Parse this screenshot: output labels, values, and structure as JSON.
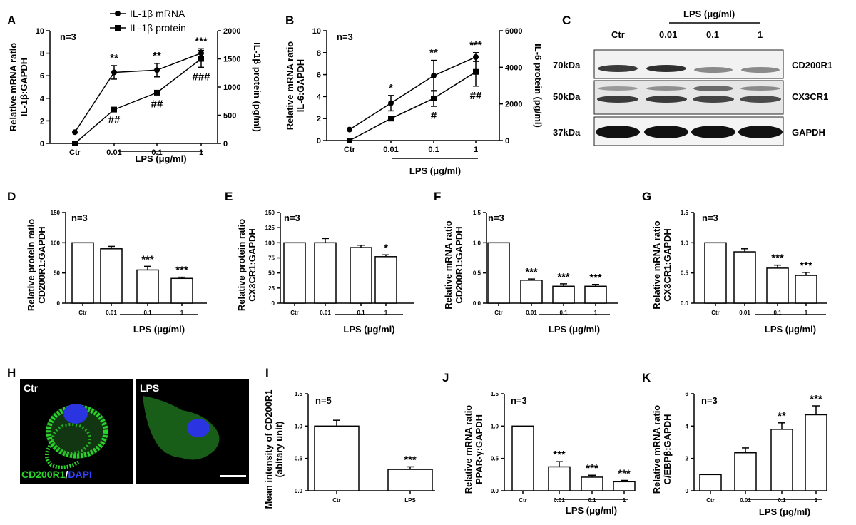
{
  "panel_labels": {
    "A": "A",
    "B": "B",
    "C": "C",
    "D": "D",
    "E": "E",
    "F": "F",
    "G": "G",
    "H": "H",
    "I": "I",
    "J": "J",
    "K": "K"
  },
  "group_label": "LPS (μg/ml)",
  "n3": "n=3",
  "n5": "n=5",
  "chart_data": [
    {
      "id": "A",
      "type": "line",
      "categories": [
        "Ctr",
        "0.01",
        "0.1",
        "1"
      ],
      "ylabel": "Relative mRNA ratio\nIL-1β:GAPDH",
      "ylabel2": "IL-1β protein (pg/ml)",
      "ylim": [
        0,
        10
      ],
      "yticks": [
        "0",
        "2",
        "4",
        "6",
        "8",
        "10"
      ],
      "ylim2": [
        0,
        2000
      ],
      "yticks2": [
        "0",
        "500",
        "1000",
        "1500",
        "2000"
      ],
      "series": [
        {
          "name": "IL-1β mRNA",
          "marker": "circle",
          "axis": "left",
          "values": [
            1.0,
            6.3,
            6.5,
            8.0
          ],
          "errors": [
            0,
            0.6,
            0.6,
            0.4
          ],
          "sig": [
            "",
            "**",
            "**",
            "***"
          ]
        },
        {
          "name": "IL-1β protein",
          "marker": "square",
          "axis": "right",
          "values": [
            0,
            600,
            900,
            1500
          ],
          "errors": [
            0,
            20,
            30,
            150
          ],
          "sig": [
            "",
            "##",
            "##",
            "###"
          ]
        }
      ],
      "n": "n=3",
      "xlabel": "LPS (μg/ml)"
    },
    {
      "id": "B",
      "type": "line",
      "categories": [
        "Ctr",
        "0.01",
        "0.1",
        "1"
      ],
      "ylabel": "Relative mRNA ratio\nIL-6:GAPDH",
      "ylabel2": "IL-6 protein (pg/ml)",
      "ylim": [
        0,
        10
      ],
      "yticks": [
        "0",
        "2",
        "4",
        "6",
        "8",
        "10"
      ],
      "ylim2": [
        0,
        6000
      ],
      "yticks2": [
        "0",
        "2000",
        "4000",
        "6000"
      ],
      "series": [
        {
          "name": "IL-6 mRNA",
          "marker": "circle",
          "axis": "left",
          "values": [
            1.0,
            3.4,
            5.9,
            7.6
          ],
          "errors": [
            0,
            0.7,
            1.4,
            0.4
          ],
          "sig": [
            "",
            "*",
            "**",
            "***"
          ]
        },
        {
          "name": "IL-6 protein",
          "marker": "square",
          "axis": "right",
          "values": [
            0,
            1200,
            2300,
            3750
          ],
          "errors": [
            0,
            60,
            430,
            780
          ],
          "sig": [
            "",
            "",
            "#",
            "##"
          ]
        }
      ],
      "n": "n=3",
      "xlabel": "LPS (μg/ml)"
    },
    {
      "id": "D",
      "type": "bar",
      "categories": [
        "Ctr",
        "0.01",
        "0.1",
        "1"
      ],
      "values": [
        100,
        90,
        55,
        41
      ],
      "errors": [
        0,
        4,
        6,
        2
      ],
      "sig": [
        "",
        "",
        "***",
        "***"
      ],
      "ylabel": "Relative protein ratio\nCD200R1:GAPDH",
      "ylim": [
        0,
        150
      ],
      "yticks": [
        "0",
        "50",
        "100",
        "150"
      ],
      "n": "n=3",
      "xlabel": "LPS (μg/ml)"
    },
    {
      "id": "E",
      "type": "bar",
      "categories": [
        "Ctr",
        "0.01",
        "0.1",
        "1"
      ],
      "values": [
        100,
        100,
        92,
        77
      ],
      "errors": [
        0,
        7,
        4,
        3
      ],
      "sig": [
        "",
        "",
        "",
        "*"
      ],
      "ylabel": "Relative protein ratio\nCX3CR1:GAPDH",
      "ylim": [
        0,
        150
      ],
      "yticks": [
        "0",
        "25",
        "50",
        "75",
        "100",
        "125",
        "150"
      ],
      "n": "n=3",
      "xlabel": "LPS (μg/ml)"
    },
    {
      "id": "F",
      "type": "bar",
      "categories": [
        "Ctr",
        "0.01",
        "0.1",
        "1"
      ],
      "values": [
        1.0,
        0.38,
        0.28,
        0.28
      ],
      "errors": [
        0,
        0.02,
        0.04,
        0.03
      ],
      "sig": [
        "",
        "***",
        "***",
        "***"
      ],
      "ylabel": "Relative mRNA ratio\nCD200R1:GAPDH",
      "ylim": [
        0,
        1.5
      ],
      "yticks": [
        "0.0",
        "0.5",
        "1.0",
        "1.5"
      ],
      "n": "n=3",
      "xlabel": "LPS (μg/ml)"
    },
    {
      "id": "G",
      "type": "bar",
      "categories": [
        "Ctr",
        "0.01",
        "0.1",
        "1"
      ],
      "values": [
        1.0,
        0.85,
        0.58,
        0.46
      ],
      "errors": [
        0,
        0.05,
        0.05,
        0.05
      ],
      "sig": [
        "",
        "",
        "***",
        "***"
      ],
      "ylabel": "Relative mRNA ratio\nCX3CR1:GAPDH",
      "ylim": [
        0,
        1.5
      ],
      "yticks": [
        "0.0",
        "0.5",
        "1.0",
        "1.5"
      ],
      "n": "n=3",
      "xlabel": "LPS (μg/ml)"
    },
    {
      "id": "I",
      "type": "bar",
      "categories": [
        "Ctr",
        "LPS"
      ],
      "values": [
        1.0,
        0.33
      ],
      "errors": [
        0.09,
        0.04
      ],
      "sig": [
        "",
        "***"
      ],
      "ylabel": "Mean intensity of CD200R1\n(abitary unit)",
      "ylim": [
        0,
        1.5
      ],
      "yticks": [
        "0.0",
        "0.5",
        "1.0",
        "1.5"
      ],
      "n": "n=5",
      "xlabel": ""
    },
    {
      "id": "J",
      "type": "bar",
      "categories": [
        "Ctr",
        "0.01",
        "0.1",
        "1"
      ],
      "values": [
        1.0,
        0.37,
        0.21,
        0.14
      ],
      "errors": [
        0,
        0.08,
        0.03,
        0.02
      ],
      "sig": [
        "",
        "***",
        "***",
        "***"
      ],
      "ylabel": "Relative mRNA ratio\nPPAR-γ:GAPDH",
      "ylim": [
        0,
        1.5
      ],
      "yticks": [
        "0.0",
        "0.5",
        "1.0",
        "1.5"
      ],
      "n": "n=3",
      "xlabel": "LPS (μg/ml)"
    },
    {
      "id": "K",
      "type": "bar",
      "categories": [
        "Ctr",
        "0.01",
        "0.1",
        "1"
      ],
      "values": [
        1.0,
        2.35,
        3.8,
        4.7
      ],
      "errors": [
        0,
        0.3,
        0.4,
        0.55
      ],
      "sig": [
        "",
        "",
        "**",
        "***"
      ],
      "ylabel": "Relative mRNA ratio\nC/EBPβ:GAPDH",
      "ylim": [
        0,
        6
      ],
      "yticks": [
        "0",
        "2",
        "4",
        "6"
      ],
      "n": "n=3",
      "xlabel": "LPS (μg/ml)"
    }
  ],
  "western_blot": {
    "header": "LPS (μg/ml)",
    "lanes": [
      "Ctr",
      "0.01",
      "0.1",
      "1"
    ],
    "rows": [
      {
        "kda": "70kDa",
        "protein": "CD200R1"
      },
      {
        "kda": "50kDa",
        "protein": "CX3CR1"
      },
      {
        "kda": "37kDa",
        "protein": "GAPDH"
      }
    ]
  },
  "microscopy": {
    "ctr_label": "Ctr",
    "lps_label": "LPS",
    "stain_part1": "CD200R1",
    "stain_sep": "/",
    "stain_part2": "DAPI",
    "green": "#2bd42b",
    "blue": "#3344ff"
  }
}
